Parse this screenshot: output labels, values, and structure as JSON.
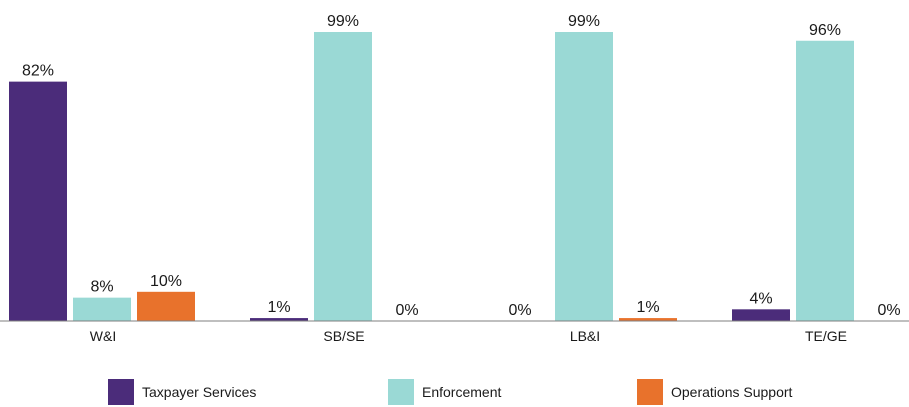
{
  "chart_data": {
    "type": "bar",
    "categories": [
      "W&I",
      "SB/SE",
      "LB&I",
      "TE/GE"
    ],
    "series": [
      {
        "name": "Taxpayer Services",
        "color": "#4b2c7a",
        "values": [
          82,
          1,
          0,
          4
        ],
        "labels": [
          "82%",
          "1%",
          "0%",
          "4%"
        ]
      },
      {
        "name": "Enforcement",
        "color": "#9ad9d5",
        "values": [
          8,
          99,
          99,
          96
        ],
        "labels": [
          "8%",
          "99%",
          "99%",
          "96%"
        ]
      },
      {
        "name": "Operations Support",
        "color": "#e8722c",
        "values": [
          10,
          0,
          1,
          0
        ],
        "labels": [
          "10%",
          "0%",
          "1%",
          "0%"
        ]
      }
    ],
    "ylim": [
      0,
      100
    ],
    "legend_position": "bottom",
    "grid": false
  }
}
